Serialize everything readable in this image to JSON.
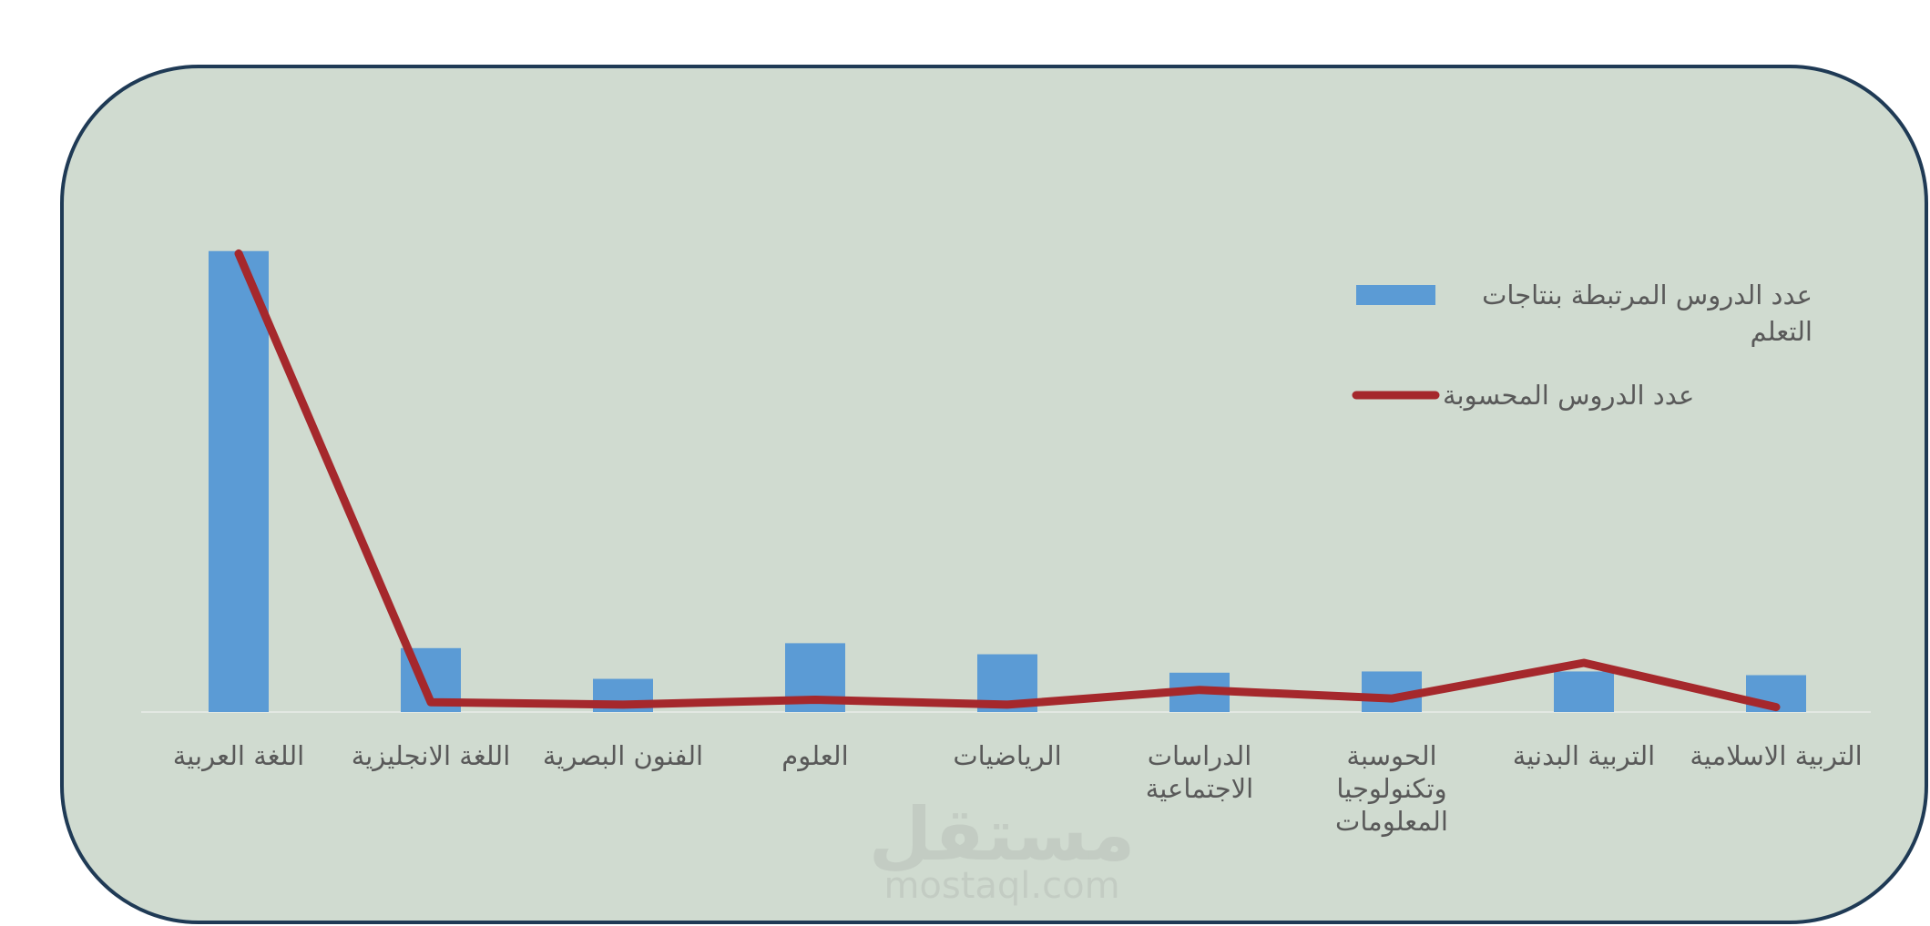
{
  "chart_data": {
    "type": "bar-line",
    "categories": [
      "اللغة العربية",
      "اللغة الانجليزية",
      "الفنون البصرية",
      "العلوم",
      "الرياضيات",
      "الدراسات الاجتماعية",
      "الحوسبة وتكنولوجيا المعلومات",
      "التربية البدنية",
      "التربية الاسلامية"
    ],
    "series": [
      {
        "name": "عدد الدروس المرتبطة بنتاجات التعلم",
        "type": "bar",
        "color": "#5b9bd5",
        "values": [
          75,
          10.4,
          5.4,
          11.2,
          9.4,
          6.4,
          6.6,
          6.6,
          6
        ]
      },
      {
        "name": "عدد الدروس المحسوبة",
        "type": "line",
        "color": "#a5282c",
        "values": [
          74.6,
          1.6,
          1.2,
          2,
          1.2,
          3.6,
          2.2,
          8,
          0.8
        ]
      }
    ],
    "ylim": [
      0,
      100
    ],
    "legend": "top-right",
    "watermark": [
      "مستقل",
      "mostaql.com"
    ]
  }
}
